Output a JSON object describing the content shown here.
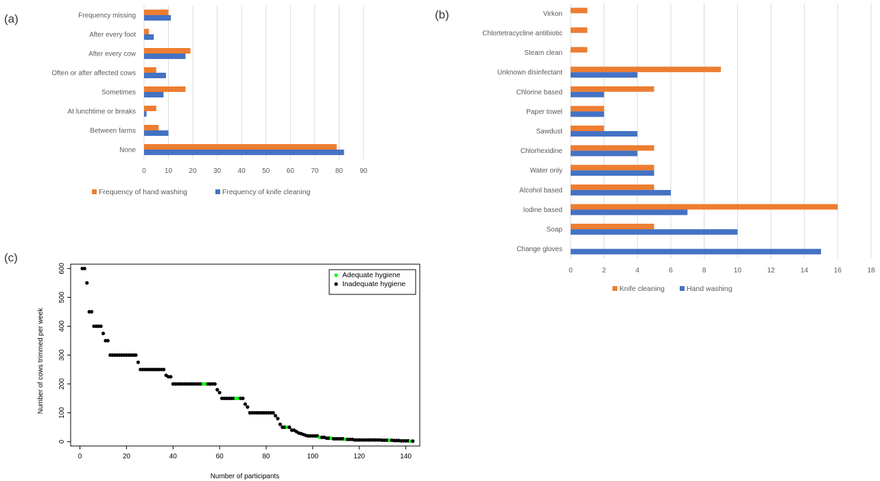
{
  "colors": {
    "orange": "#ED7D31",
    "blue": "#4472C4",
    "green": "#00FF00",
    "black": "#000000",
    "grid": "#D9D9D9",
    "text": "#595959"
  },
  "chart_data": [
    {
      "panel_label": "(a)",
      "type": "bar",
      "orientation": "horizontal",
      "categories": [
        "Frequency missing",
        "After every foot",
        "After every cow",
        "Often or after affected cows",
        "Sometimes",
        "At lunchtime or breaks",
        "Between farms",
        "None"
      ],
      "series": [
        {
          "name": "Frequency of hand washing",
          "color": "#ED7D31",
          "values": [
            10,
            2,
            19,
            5,
            17,
            5,
            6,
            79
          ]
        },
        {
          "name": "Frequency of knife cleaning",
          "color": "#4472C4",
          "values": [
            11,
            4,
            17,
            9,
            8,
            1,
            10,
            82
          ]
        }
      ],
      "x_ticks": [
        "0",
        "10",
        "20",
        "30",
        "40",
        "50",
        "60",
        "70",
        "80",
        "90"
      ],
      "xlim": [
        0,
        90
      ],
      "grid": "vertical",
      "legend_position": "bottom"
    },
    {
      "panel_label": "(b)",
      "type": "bar",
      "orientation": "horizontal",
      "categories": [
        "Virkon",
        "Chlortetracycline antibiotic",
        "Steam clean",
        "Unknown disinfectant",
        "Chlorine based",
        "Paper towel",
        "Sawdust",
        "Chlorhexidine",
        "Water only",
        "Alcohol based",
        "Iodine based",
        "Soap",
        "Change gloves"
      ],
      "series": [
        {
          "name": "Knife cleaning",
          "color": "#ED7D31",
          "values": [
            1,
            1,
            1,
            9,
            5,
            2,
            2,
            5,
            5,
            5,
            16,
            5,
            0
          ]
        },
        {
          "name": "Hand washing",
          "color": "#4472C4",
          "values": [
            0,
            0,
            0,
            4,
            2,
            2,
            4,
            4,
            5,
            6,
            7,
            10,
            15
          ]
        }
      ],
      "x_ticks": [
        "0",
        "2",
        "4",
        "6",
        "8",
        "10",
        "12",
        "14",
        "16",
        "18"
      ],
      "xlim": [
        0,
        18
      ],
      "grid": "vertical",
      "legend_position": "bottom"
    },
    {
      "panel_label": "(c)",
      "type": "scatter",
      "xlabel": "Number of participants",
      "ylabel": "Number of cows trimmed per week",
      "x_ticks": [
        "0",
        "20",
        "40",
        "60",
        "80",
        "100",
        "120",
        "140"
      ],
      "y_ticks": [
        "0",
        "100",
        "200",
        "300",
        "400",
        "500",
        "600"
      ],
      "xlim": [
        -4,
        146
      ],
      "ylim": [
        -15,
        615
      ],
      "legend_position": "top-right",
      "legend": [
        {
          "name": "Adequate hygiene",
          "color": "#00FF00"
        },
        {
          "name": "Inadequate hygiene",
          "color": "#000000"
        }
      ],
      "adequate_participants": [
        53,
        54,
        67,
        68,
        89,
        103,
        108,
        114,
        133,
        142
      ],
      "y": [
        600,
        600,
        550,
        450,
        450,
        400,
        400,
        400,
        400,
        375,
        350,
        350,
        300,
        300,
        300,
        300,
        300,
        300,
        300,
        300,
        300,
        300,
        300,
        300,
        275,
        250,
        250,
        250,
        250,
        250,
        250,
        250,
        250,
        250,
        250,
        250,
        230,
        225,
        225,
        200,
        200,
        200,
        200,
        200,
        200,
        200,
        200,
        200,
        200,
        200,
        200,
        200,
        200,
        200,
        200,
        200,
        200,
        200,
        180,
        170,
        150,
        150,
        150,
        150,
        150,
        150,
        150,
        150,
        150,
        150,
        130,
        120,
        100,
        100,
        100,
        100,
        100,
        100,
        100,
        100,
        100,
        100,
        100,
        90,
        80,
        60,
        50,
        50,
        50,
        50,
        40,
        40,
        35,
        30,
        28,
        25,
        22,
        20,
        20,
        20,
        20,
        20,
        15,
        15,
        15,
        12,
        12,
        12,
        10,
        10,
        10,
        10,
        10,
        8,
        8,
        8,
        8,
        6,
        6,
        6,
        6,
        6,
        6,
        6,
        6,
        6,
        6,
        6,
        6,
        5,
        5,
        5,
        5,
        5,
        4,
        4,
        4,
        3,
        3,
        3,
        3,
        2,
        2
      ]
    }
  ]
}
